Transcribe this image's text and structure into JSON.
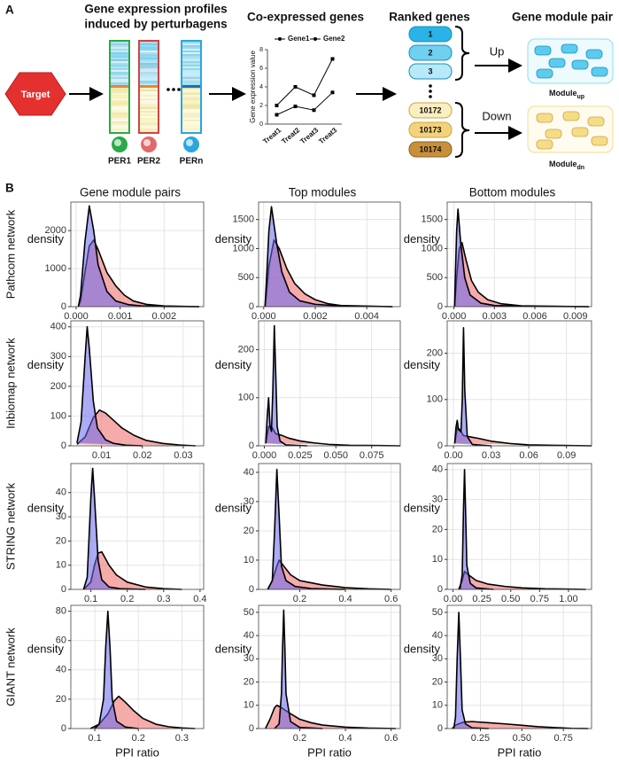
{
  "panel_labels": [
    "A",
    "B"
  ],
  "panel_a": {
    "profiles_title": [
      "Gene expression profiles",
      "induced by perturbagens"
    ],
    "target": "Target",
    "perturbagens": [
      "PER1",
      "PER2",
      "PERn"
    ],
    "ranked_title": "Ranked genes",
    "ranks": [
      "1",
      "2",
      "3",
      "10172",
      "10173",
      "10174"
    ],
    "module_title": "Gene module pair",
    "directions": [
      "Up",
      "Down"
    ],
    "modules": [
      {
        "text": "Module",
        "sub": "up"
      },
      {
        "text": "Module",
        "sub": "dn"
      }
    ]
  },
  "panel_b": {
    "column_titles": [
      "Gene module pairs",
      "Top modules",
      "Bottom modules"
    ],
    "row_labels": [
      "Pathcom network",
      "Inbiomap network",
      "STRING network",
      "GIANT network"
    ]
  },
  "chart_data": [
    {
      "type": "line",
      "title": "Co-expressed genes",
      "ylabel": "Gene expression value",
      "categories": [
        "Treat1",
        "Treat2",
        "Treat3",
        "Treat3"
      ],
      "series": [
        {
          "name": "Gene1",
          "color": "#000000",
          "values": [
            2,
            4,
            3.1,
            7
          ]
        },
        {
          "name": "Gene2",
          "color": "#000000",
          "values": [
            1,
            1.9,
            1.5,
            3.4
          ]
        }
      ],
      "ylim": [
        0,
        8
      ],
      "yticks": [
        0,
        2,
        4,
        6,
        8
      ]
    },
    {
      "type": "density",
      "xlabel": "PPI ratio",
      "ylabel": "density",
      "grid": true,
      "xlim": [
        -0.00012,
        0.0029
      ],
      "xticks": [
        {
          "value": 0,
          "label": "0.000"
        },
        0.001,
        0.002
      ],
      "ylim": [
        0,
        2750
      ],
      "yticks": [
        0,
        1000,
        2000
      ],
      "series": [
        {
          "color": "#ee6666",
          "x": [
            5e-05,
            0.0001,
            0.0002,
            0.0003,
            0.0004,
            0.0005,
            0.0007,
            0.0009,
            0.0011,
            0.0013,
            0.0016,
            0.002,
            0.0028
          ],
          "values": [
            0,
            150,
            900,
            1600,
            1750,
            1500,
            900,
            550,
            300,
            150,
            60,
            20,
            0
          ]
        },
        {
          "color": "#6666ee",
          "x": [
            5e-05,
            0.0001,
            0.0002,
            0.0003,
            0.0004,
            0.0005,
            0.0007,
            0.0009,
            0.0012,
            0.0015,
            0.002,
            0.0028
          ],
          "values": [
            0,
            300,
            1700,
            2650,
            2000,
            1100,
            400,
            150,
            50,
            20,
            5,
            0
          ]
        }
      ]
    },
    {
      "type": "density",
      "xlabel": "PPI ratio",
      "ylabel": "density",
      "grid": true,
      "xlim": [
        -0.0002,
        0.0053
      ],
      "xticks": [
        {
          "value": 0,
          "label": "0.000"
        },
        0.002,
        0.004
      ],
      "ylim": [
        0,
        1800
      ],
      "yticks": [
        0,
        500,
        1000,
        1500
      ],
      "series": [
        {
          "color": "#ee6666",
          "x": [
            5e-05,
            0.0001,
            0.0002,
            0.0004,
            0.0006,
            0.0009,
            0.0012,
            0.0016,
            0.002,
            0.0025,
            0.003,
            0.005
          ],
          "values": [
            0,
            200,
            700,
            1150,
            1000,
            650,
            400,
            220,
            120,
            50,
            20,
            0
          ]
        },
        {
          "color": "#6666ee",
          "x": [
            5e-05,
            0.0001,
            0.0002,
            0.0003,
            0.0005,
            0.0007,
            0.001,
            0.0014,
            0.002,
            0.003,
            0.005
          ],
          "values": [
            0,
            400,
            1300,
            1720,
            1100,
            600,
            250,
            100,
            40,
            10,
            0
          ]
        }
      ]
    },
    {
      "type": "density",
      "xlabel": "PPI ratio",
      "ylabel": "density",
      "grid": true,
      "xlim": [
        -0.0005,
        0.0102
      ],
      "xticks": [
        {
          "value": 0,
          "label": "0.000"
        },
        0.003,
        0.006,
        0.009
      ],
      "ylim": [
        0,
        1800
      ],
      "yticks": [
        0,
        500,
        1000,
        1500
      ],
      "series": [
        {
          "color": "#ee6666",
          "x": [
            5e-05,
            0.0002,
            0.0004,
            0.0006,
            0.0009,
            0.0013,
            0.0018,
            0.0025,
            0.0035,
            0.005,
            0.01
          ],
          "values": [
            0,
            500,
            1000,
            1100,
            800,
            450,
            250,
            120,
            50,
            15,
            0
          ]
        },
        {
          "color": "#6666ee",
          "x": [
            5e-05,
            0.0001,
            0.0002,
            0.0003,
            0.0005,
            0.0008,
            0.0012,
            0.002,
            0.003,
            0.006,
            0.01
          ],
          "values": [
            0,
            500,
            1300,
            1680,
            1100,
            500,
            200,
            60,
            20,
            5,
            0
          ]
        }
      ]
    },
    {
      "type": "density",
      "xlabel": "PPI ratio",
      "ylabel": "density",
      "grid": true,
      "xlim": [
        0.0025,
        0.035
      ],
      "xticks": [
        0.01,
        0.02,
        0.03
      ],
      "ylim": [
        0,
        420
      ],
      "yticks": [
        0,
        100,
        200,
        300,
        400
      ],
      "series": [
        {
          "color": "#ee6666",
          "x": [
            0.004,
            0.006,
            0.008,
            0.0095,
            0.011,
            0.013,
            0.015,
            0.018,
            0.021,
            0.025,
            0.029,
            0.033
          ],
          "values": [
            5,
            30,
            95,
            120,
            110,
            85,
            60,
            35,
            18,
            8,
            3,
            0
          ]
        },
        {
          "color": "#6666ee",
          "x": [
            0.004,
            0.005,
            0.006,
            0.0065,
            0.007,
            0.008,
            0.009,
            0.011,
            0.013,
            0.016,
            0.02
          ],
          "values": [
            10,
            80,
            300,
            400,
            330,
            150,
            60,
            20,
            8,
            2,
            0
          ]
        }
      ]
    },
    {
      "type": "density",
      "xlabel": "PPI ratio",
      "ylabel": "density",
      "grid": true,
      "xlim": [
        -0.004,
        0.095
      ],
      "xticks": [
        {
          "value": 0,
          "label": "0.000"
        },
        0.025,
        {
          "value": 0.05,
          "label": "0.050"
        },
        0.075
      ],
      "ylim": [
        0,
        260
      ],
      "yticks": [
        0,
        100,
        200
      ],
      "series": [
        {
          "color": "#ee6666",
          "x": [
            0.001,
            0.003,
            0.005,
            0.008,
            0.012,
            0.017,
            0.025,
            0.035,
            0.045,
            0.06,
            0.08,
            0.095
          ],
          "values": [
            5,
            40,
            40,
            25,
            22,
            16,
            10,
            6,
            3,
            1,
            0.5,
            0
          ]
        },
        {
          "color": "#6666ee",
          "x": [
            0.001,
            0.002,
            0.003,
            0.004,
            0.005,
            0.006,
            0.007,
            0.008,
            0.009,
            0.011,
            0.015,
            0.03
          ],
          "values": [
            5,
            60,
            100,
            40,
            30,
            120,
            250,
            150,
            40,
            10,
            2,
            0
          ]
        }
      ]
    },
    {
      "type": "density",
      "xlabel": "PPI ratio",
      "ylabel": "density",
      "grid": true,
      "xlim": [
        -0.005,
        0.11
      ],
      "xticks": [
        {
          "value": 0,
          "label": "0.00"
        },
        0.03,
        0.06,
        0.09
      ],
      "ylim": [
        0,
        270
      ],
      "yticks": [
        0,
        100,
        200
      ],
      "series": [
        {
          "color": "#ee6666",
          "x": [
            0.001,
            0.003,
            0.005,
            0.008,
            0.012,
            0.02,
            0.03,
            0.045,
            0.06,
            0.08,
            0.11
          ],
          "values": [
            5,
            40,
            35,
            22,
            20,
            16,
            10,
            5,
            2,
            1,
            0
          ]
        },
        {
          "color": "#6666ee",
          "x": [
            0.001,
            0.002,
            0.003,
            0.004,
            0.006,
            0.007,
            0.008,
            0.009,
            0.011,
            0.015,
            0.03
          ],
          "values": [
            5,
            40,
            55,
            35,
            30,
            100,
            255,
            120,
            20,
            3,
            0
          ]
        }
      ]
    },
    {
      "type": "density",
      "xlabel": "PPI ratio",
      "ylabel": "density",
      "grid": true,
      "xlim": [
        0.045,
        0.41
      ],
      "xticks": [
        0.1,
        0.2,
        0.3,
        0.4
      ],
      "ylim": [
        0,
        52
      ],
      "yticks": [
        0,
        10,
        20,
        30,
        40
      ],
      "series": [
        {
          "color": "#ee6666",
          "x": [
            0.08,
            0.1,
            0.11,
            0.12,
            0.13,
            0.15,
            0.17,
            0.2,
            0.25,
            0.3,
            0.35
          ],
          "values": [
            0,
            3,
            10,
            15,
            15.5,
            10,
            6,
            3,
            1,
            0.3,
            0
          ]
        },
        {
          "color": "#6666ee",
          "x": [
            0.08,
            0.09,
            0.1,
            0.105,
            0.11,
            0.12,
            0.13,
            0.15,
            0.18,
            0.25
          ],
          "values": [
            0,
            5,
            38,
            50,
            38,
            12,
            4,
            1,
            0.3,
            0
          ]
        }
      ]
    },
    {
      "type": "density",
      "xlabel": "PPI ratio",
      "ylabel": "density",
      "grid": true,
      "xlim": [
        0.02,
        0.64
      ],
      "xticks": [
        0.2,
        0.4,
        0.6
      ],
      "ylim": [
        0,
        43
      ],
      "yticks": [
        0,
        10,
        20,
        30,
        40
      ],
      "series": [
        {
          "color": "#ee6666",
          "x": [
            0.06,
            0.08,
            0.1,
            0.11,
            0.13,
            0.16,
            0.2,
            0.3,
            0.4,
            0.5,
            0.6
          ],
          "values": [
            0,
            3,
            8,
            10,
            8,
            5,
            3,
            1.5,
            0.6,
            0.2,
            0
          ]
        },
        {
          "color": "#6666ee",
          "x": [
            0.06,
            0.08,
            0.09,
            0.1,
            0.11,
            0.12,
            0.14,
            0.18,
            0.25,
            0.4
          ],
          "values": [
            0,
            3,
            20,
            41,
            25,
            8,
            3,
            1,
            0.3,
            0
          ]
        }
      ]
    },
    {
      "type": "density",
      "xlabel": "PPI ratio",
      "ylabel": "density",
      "grid": true,
      "xlim": [
        -0.05,
        1.2
      ],
      "xticks": [
        {
          "value": 0,
          "label": "0.00"
        },
        0.25,
        {
          "value": 0.5,
          "label": "0.50"
        },
        0.75,
        {
          "value": 1,
          "label": "1.00"
        }
      ],
      "ylim": [
        0,
        42
      ],
      "yticks": [
        0,
        10,
        20,
        30,
        40
      ],
      "series": [
        {
          "color": "#ee6666",
          "x": [
            0.05,
            0.08,
            0.1,
            0.13,
            0.2,
            0.3,
            0.45,
            0.6,
            0.8,
            1.0,
            1.15
          ],
          "values": [
            0,
            3,
            6,
            5,
            3,
            1.8,
            1,
            0.5,
            0.2,
            0.1,
            0
          ]
        },
        {
          "color": "#6666ee",
          "x": [
            0.06,
            0.08,
            0.09,
            0.1,
            0.11,
            0.12,
            0.15,
            0.2,
            0.35
          ],
          "values": [
            0,
            5,
            25,
            40,
            25,
            8,
            2,
            0.5,
            0
          ]
        }
      ]
    },
    {
      "type": "density",
      "xlabel": "PPI ratio",
      "ylabel": "density",
      "grid": true,
      "xlim": [
        0.045,
        0.35
      ],
      "xticks": [
        0.1,
        0.2,
        0.3
      ],
      "ylim": [
        0,
        84
      ],
      "yticks": [
        0,
        20,
        40,
        60,
        80
      ],
      "series": [
        {
          "color": "#ee6666",
          "x": [
            0.09,
            0.11,
            0.13,
            0.145,
            0.155,
            0.17,
            0.19,
            0.21,
            0.24,
            0.27,
            0.3,
            0.33
          ],
          "values": [
            0,
            3,
            10,
            19,
            22,
            18,
            12,
            7,
            3,
            1.2,
            0.4,
            0
          ]
        },
        {
          "color": "#6666ee",
          "x": [
            0.1,
            0.11,
            0.12,
            0.125,
            0.13,
            0.135,
            0.14,
            0.15,
            0.17,
            0.2
          ],
          "values": [
            0,
            3,
            20,
            55,
            80,
            55,
            20,
            5,
            1,
            0
          ]
        }
      ]
    },
    {
      "type": "density",
      "xlabel": "PPI ratio",
      "ylabel": "density",
      "grid": true,
      "xlim": [
        0.02,
        0.64
      ],
      "xticks": [
        0.2,
        0.4,
        0.6
      ],
      "ylim": [
        0,
        53
      ],
      "yticks": [
        0,
        10,
        20,
        30,
        40,
        50
      ],
      "series": [
        {
          "color": "#ee6666",
          "x": [
            0.05,
            0.07,
            0.09,
            0.1,
            0.12,
            0.15,
            0.2,
            0.25,
            0.3,
            0.4,
            0.5,
            0.62
          ],
          "values": [
            0,
            4,
            9,
            10,
            9,
            7,
            4,
            2.5,
            1.5,
            0.6,
            0.2,
            0
          ]
        },
        {
          "color": "#6666ee",
          "x": [
            0.09,
            0.11,
            0.12,
            0.125,
            0.13,
            0.135,
            0.14,
            0.16,
            0.2,
            0.3
          ],
          "values": [
            0,
            2,
            15,
            35,
            51,
            35,
            15,
            3,
            0.5,
            0
          ]
        }
      ]
    },
    {
      "type": "density",
      "xlabel": "PPI ratio",
      "ylabel": "density",
      "grid": true,
      "xlim": [
        0.05,
        0.92
      ],
      "xticks": [
        0.25,
        {
          "value": 0.5,
          "label": "0.50"
        },
        0.75
      ],
      "ylim": [
        0,
        53
      ],
      "yticks": [
        0,
        10,
        20,
        30,
        40,
        50
      ],
      "series": [
        {
          "color": "#ee6666",
          "x": [
            0.08,
            0.1,
            0.15,
            0.2,
            0.3,
            0.4,
            0.5,
            0.6,
            0.7,
            0.8,
            0.9
          ],
          "values": [
            0,
            1.5,
            2.8,
            3,
            2.5,
            2,
            1.4,
            0.8,
            0.4,
            0.1,
            0
          ]
        },
        {
          "color": "#6666ee",
          "x": [
            0.09,
            0.1,
            0.11,
            0.12,
            0.13,
            0.14,
            0.16,
            0.2,
            0.3
          ],
          "values": [
            0,
            5,
            30,
            50,
            30,
            8,
            2,
            0.3,
            0
          ]
        }
      ]
    }
  ]
}
